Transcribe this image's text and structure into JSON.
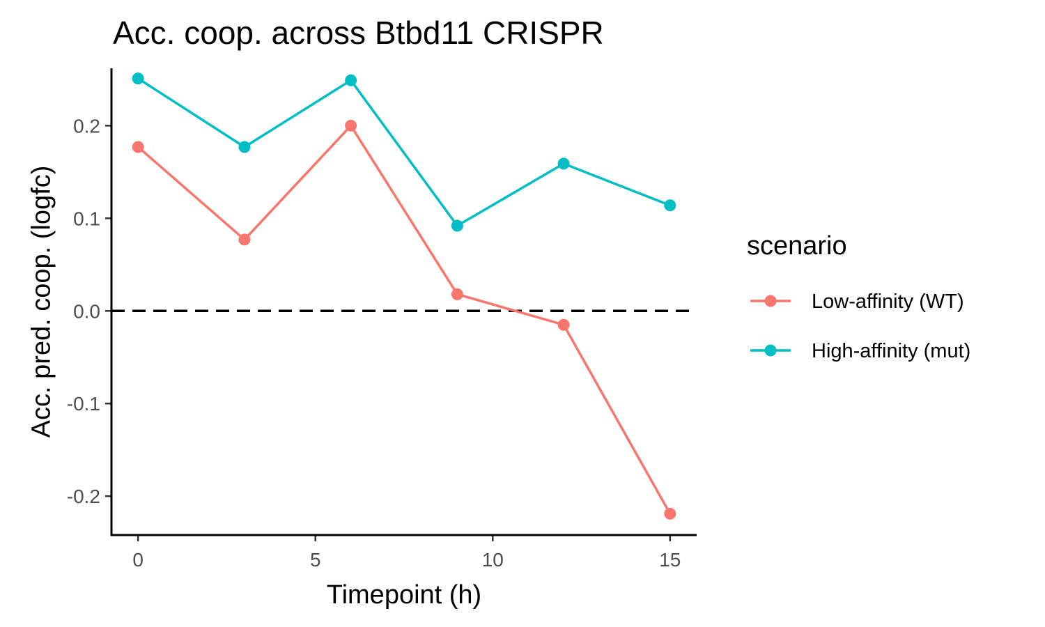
{
  "chart_data": {
    "type": "line",
    "title": "Acc. coop. across Btbd11 CRISPR",
    "xlabel": "Timepoint (h)",
    "ylabel": "Acc. pred. coop. (logfc)",
    "x": [
      0,
      3,
      6,
      9,
      12,
      15
    ],
    "xlim": [
      -0.75,
      15.75
    ],
    "ylim": [
      -0.242,
      0.262
    ],
    "x_ticks": [
      0,
      5,
      10,
      15
    ],
    "x_tick_labels": [
      "0",
      "5",
      "10",
      "15"
    ],
    "y_ticks": [
      -0.2,
      -0.1,
      0.0,
      0.1,
      0.2
    ],
    "y_tick_labels": [
      "-0.2",
      "-0.1",
      "0.0",
      "0.1",
      "0.2"
    ],
    "reference_line": {
      "y": 0.0,
      "style": "dashed",
      "color": "#000000"
    },
    "grid": false,
    "legend": {
      "title": "scenario",
      "position": "right"
    },
    "series": [
      {
        "name": "Low-affinity (WT)",
        "color": "#F8766D",
        "values": [
          0.177,
          0.077,
          0.2,
          0.018,
          -0.015,
          -0.219
        ]
      },
      {
        "name": "High-affinity (mut)",
        "color": "#00BFC4",
        "values": [
          0.251,
          0.177,
          0.249,
          0.092,
          0.159,
          0.114
        ]
      }
    ]
  }
}
